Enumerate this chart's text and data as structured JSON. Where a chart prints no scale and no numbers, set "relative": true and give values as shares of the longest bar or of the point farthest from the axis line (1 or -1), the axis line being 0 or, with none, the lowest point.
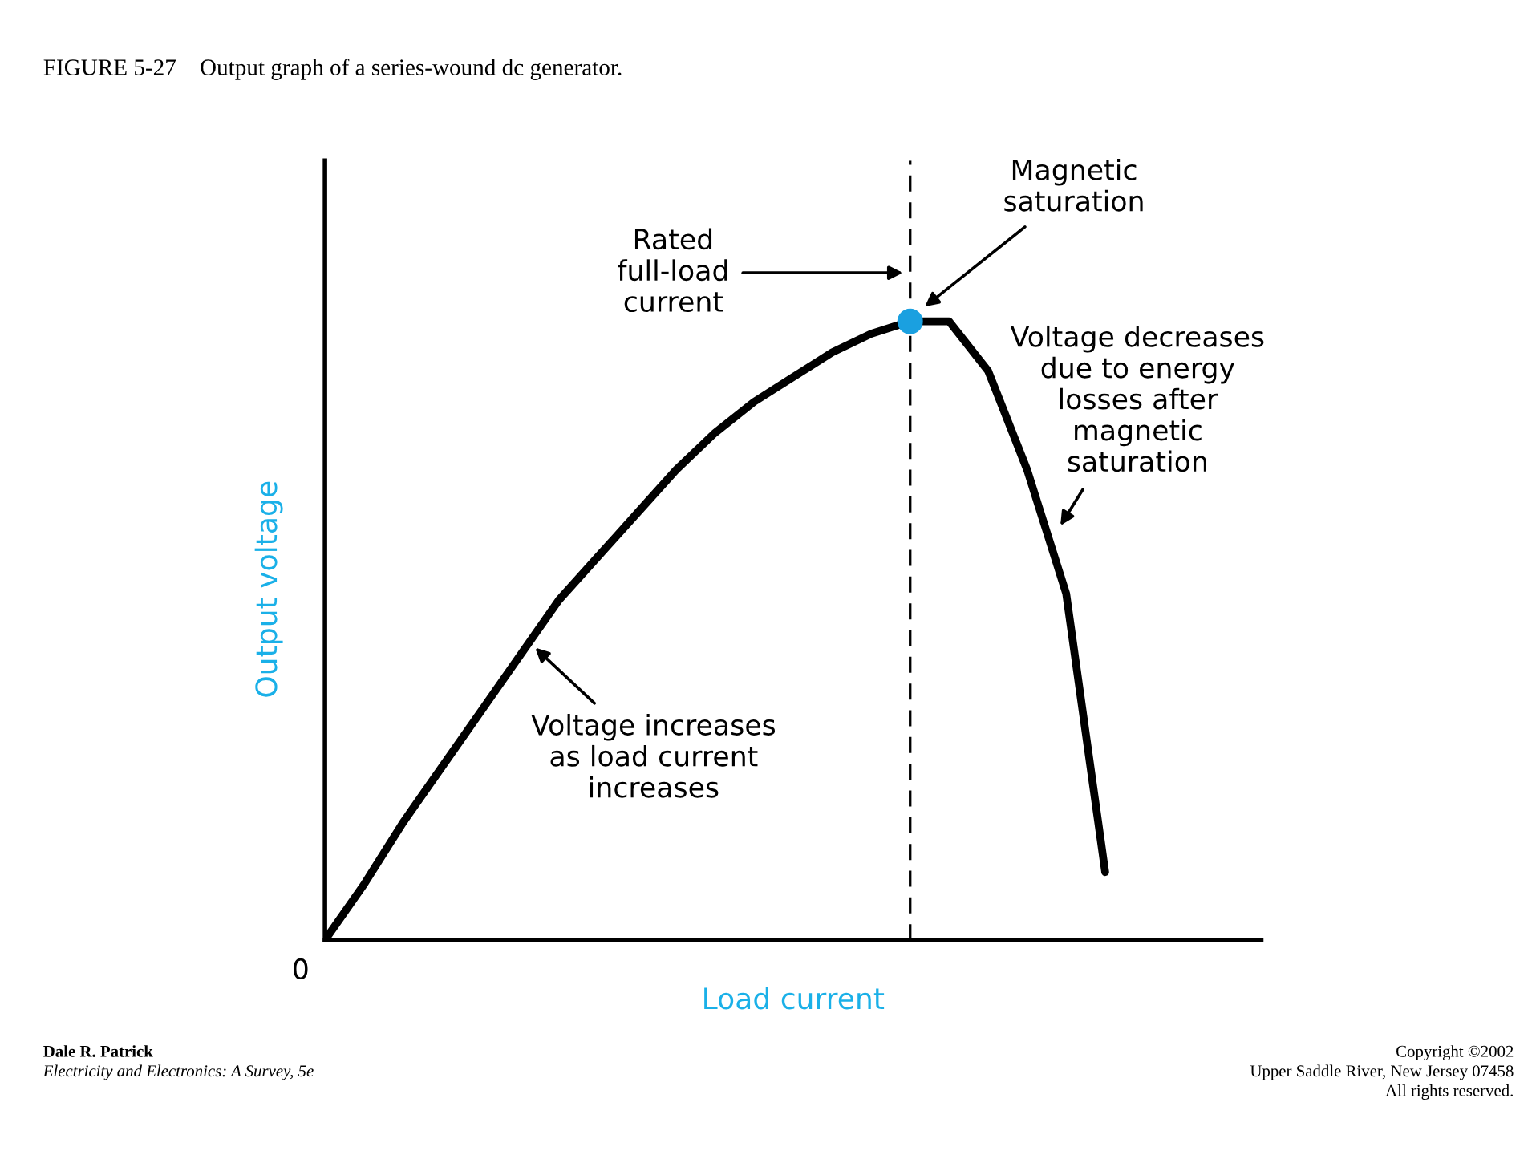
{
  "chart_data": {
    "type": "line",
    "title": "FIGURE 5-27    Output graph of a series-wound dc generator.",
    "xlabel": "Load current",
    "ylabel": "Output voltage",
    "relative": true,
    "categories": [
      null,
      null,
      null,
      null,
      null,
      null,
      null,
      null,
      null,
      null,
      null,
      null,
      null,
      null,
      null,
      null,
      null,
      null,
      null,
      null,
      null,
      null,
      null,
      null,
      null
    ],
    "series": [
      {
        "color": "#000000",
        "values": [
          0,
          0.09,
          0.19,
          0.28,
          0.37,
          0.46,
          0.55,
          0.62,
          0.69,
          0.76,
          0.82,
          0.87,
          0.91,
          0.95,
          0.98,
          1,
          1,
          0.92,
          0.76,
          0.56,
          0.11,
          null,
          null,
          null,
          null
        ]
      }
    ],
    "annotations": [
      "Magnetic\nsaturation",
      "Voltage decreases\ndue to energy\nlosses after\nmagnetic\nsaturation",
      "Voltage increases\nas load current\nincreases",
      "Rated\nfull-load\ncurrent",
      "0",
      "Dale R. Patrick",
      "Electricity and Electronics: A Survey, 5e",
      "Copyright ©2002",
      "Upper Saddle River, New Jersey 07458",
      "All rights reserved."
    ]
  }
}
